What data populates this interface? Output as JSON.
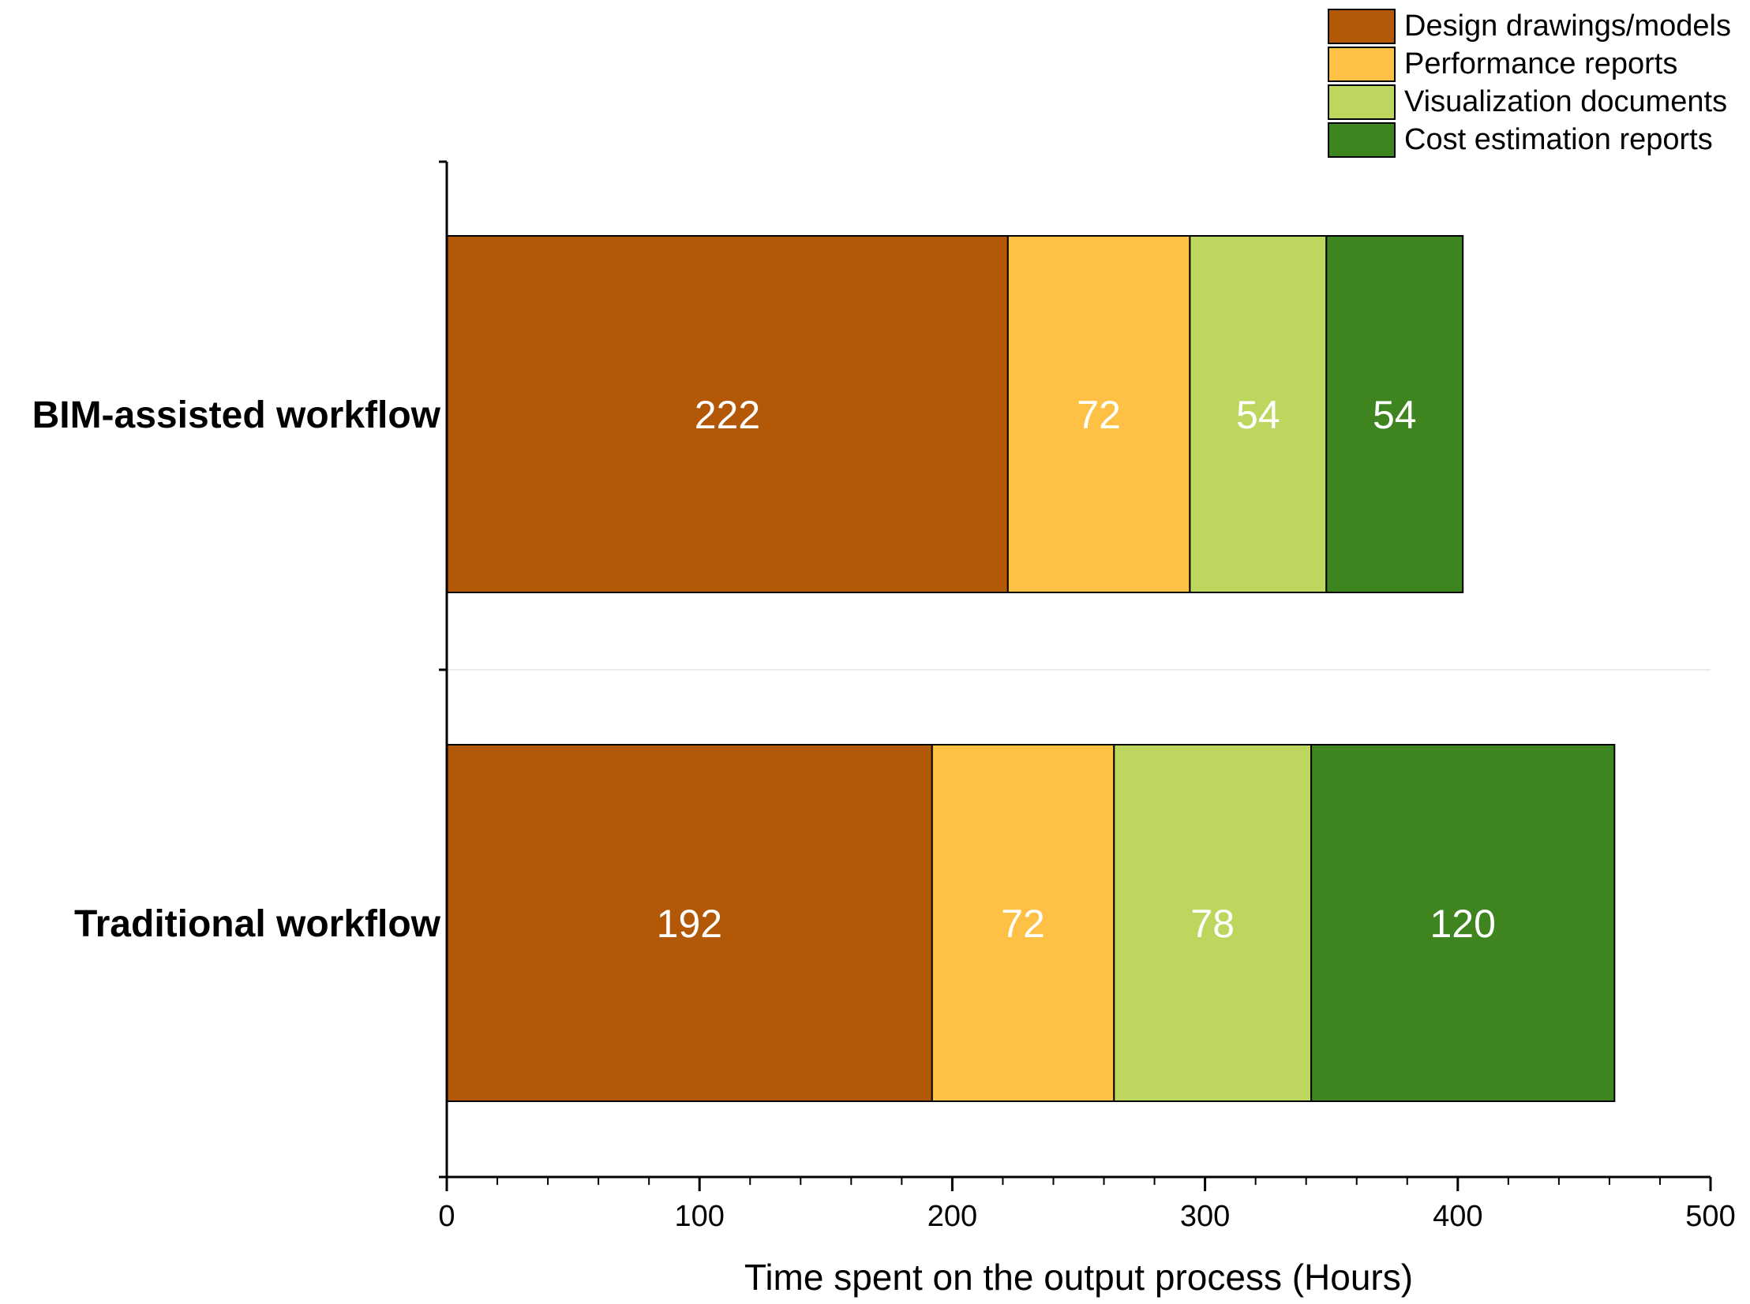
{
  "chart_data": {
    "type": "bar",
    "orientation": "horizontal",
    "stacked": true,
    "categories": [
      "BIM-assisted workflow",
      "Traditional workflow"
    ],
    "series": [
      {
        "name": "Design drawings/models",
        "color": "#B35806",
        "values": [
          222,
          192
        ]
      },
      {
        "name": "Performance reports",
        "color": "#FFC145",
        "values": [
          72,
          72
        ]
      },
      {
        "name": "Visualization documents",
        "color": "#BDD65E",
        "values": [
          54,
          78
        ]
      },
      {
        "name": "Cost estimation reports",
        "color": "#3E8520",
        "values": [
          54,
          120
        ]
      }
    ],
    "xlabel": "Time spent on the output process (Hours)",
    "ylabel": "",
    "xlim": [
      0,
      500
    ],
    "xticks": [
      0,
      100,
      200,
      300,
      400,
      500
    ],
    "minor_tick_step": 20,
    "legend_position": "top-right",
    "grid": false,
    "data_label_color": "#ffffff"
  }
}
